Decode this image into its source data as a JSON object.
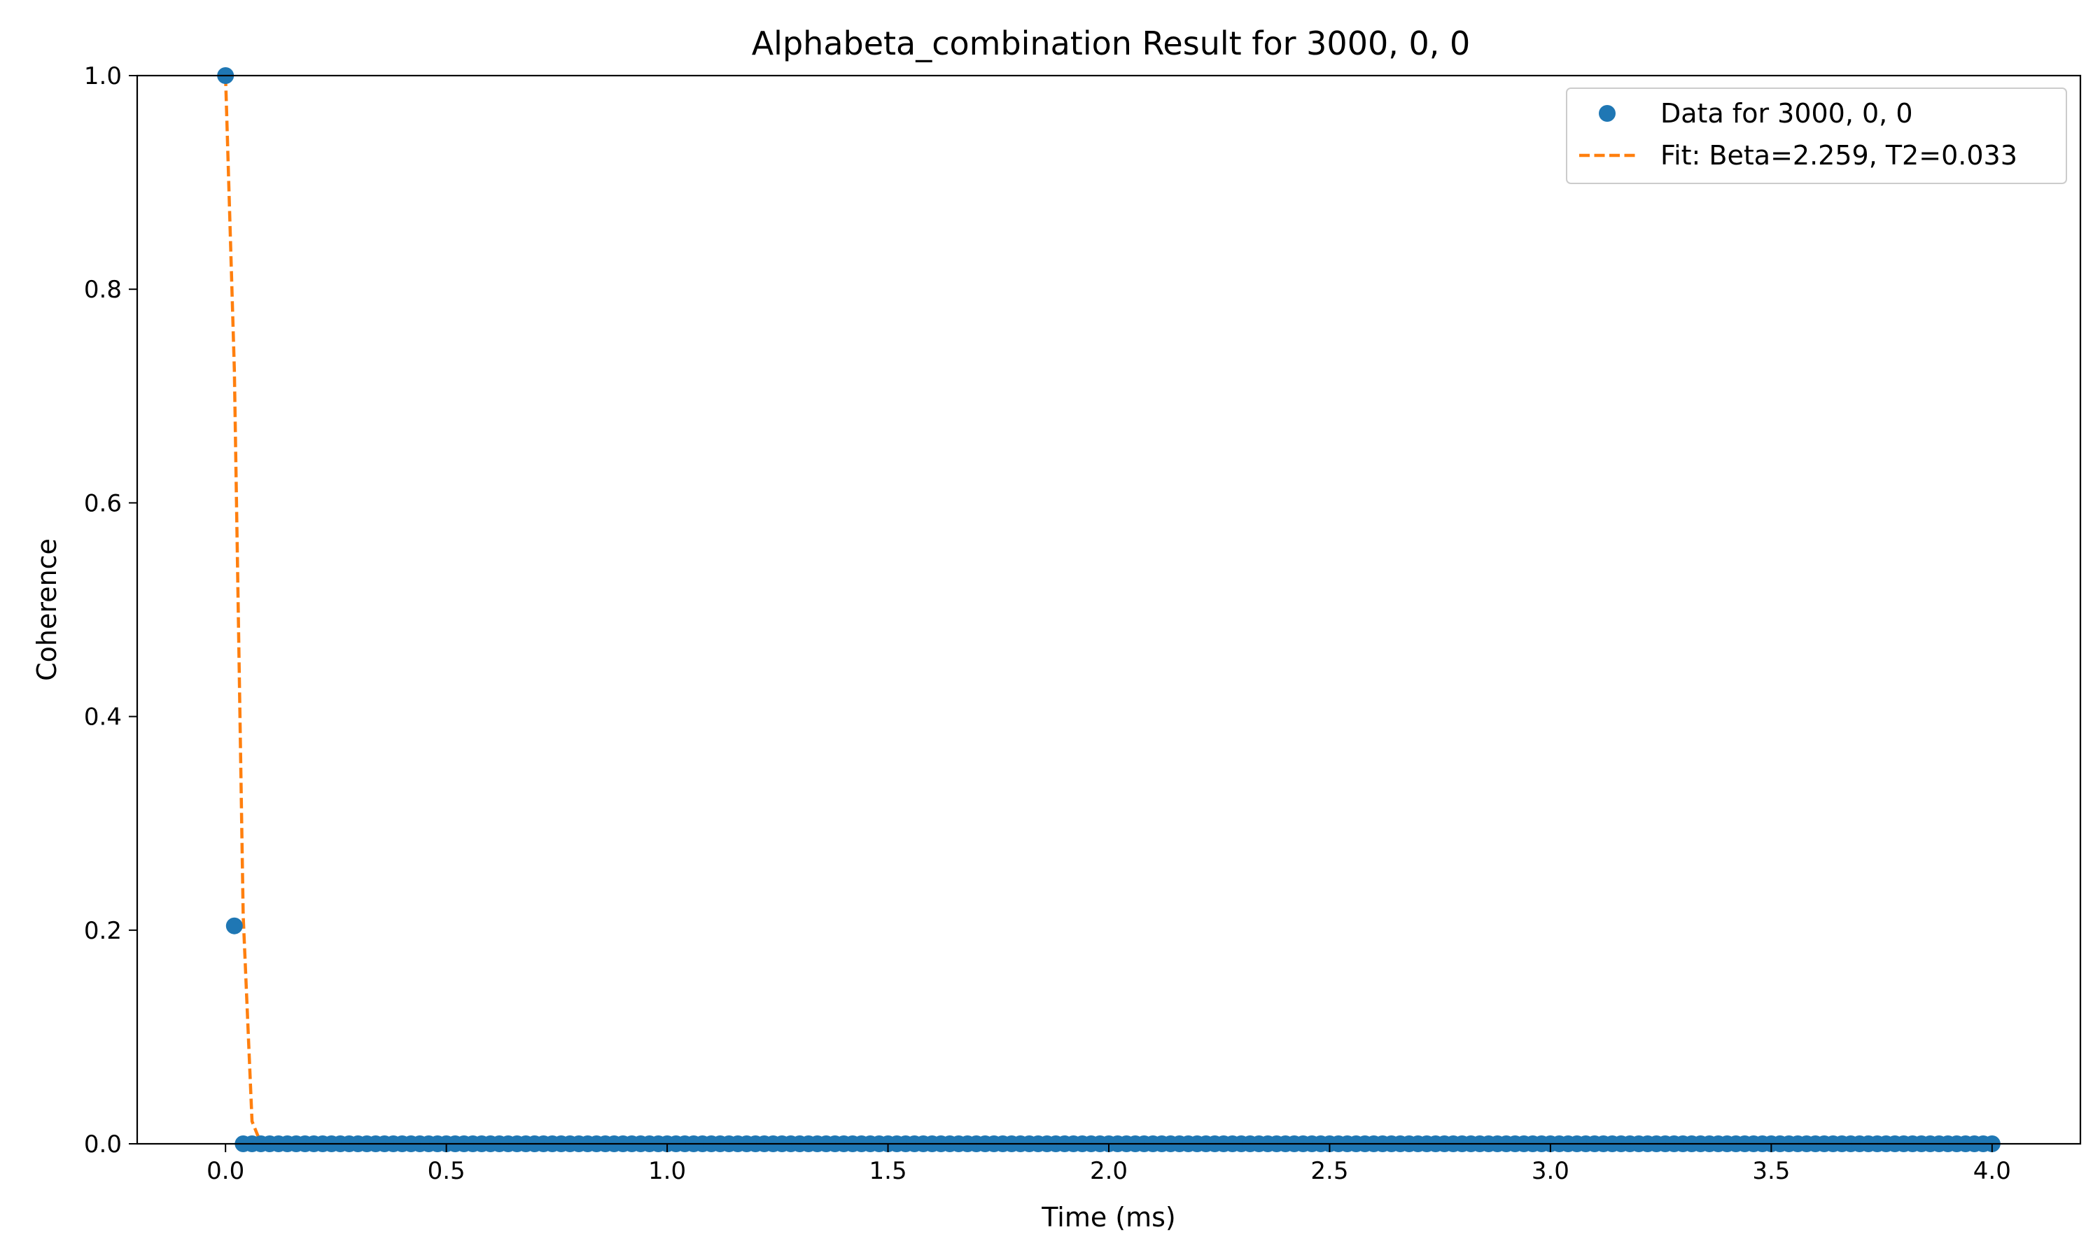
{
  "chart_data": {
    "type": "scatter",
    "title": "Alphabeta_combination Result for 3000, 0, 0",
    "xlabel": "Time (ms)",
    "ylabel": "Coherence",
    "xlim": [
      -0.2,
      4.2
    ],
    "ylim": [
      0.0,
      1.0
    ],
    "x_ticks": [
      0.0,
      0.5,
      1.0,
      1.5,
      2.0,
      2.5,
      3.0,
      3.5,
      4.0
    ],
    "x_tick_labels": [
      "0.0",
      "0.5",
      "1.0",
      "1.5",
      "2.0",
      "2.5",
      "3.0",
      "3.5",
      "4.0"
    ],
    "y_ticks": [
      0.0,
      0.2,
      0.4,
      0.6,
      0.8,
      1.0
    ],
    "y_tick_labels": [
      "0.0",
      "0.2",
      "0.4",
      "0.6",
      "0.8",
      "1.0"
    ],
    "grid": false,
    "legend_position": "top-right",
    "series": [
      {
        "name": "Data for 3000, 0, 0",
        "style": "markers",
        "color": "#1f77b4",
        "x_start": 0.0,
        "x_end": 4.0,
        "x_step": 0.02,
        "y_first_points": [
          1.0,
          0.204
        ],
        "y_rest": 0.0
      },
      {
        "name": "Fit: Beta=2.259, T2=0.033",
        "style": "dashed-line",
        "color": "#ff7f0e",
        "beta": 2.259,
        "t2": 0.033
      }
    ]
  }
}
